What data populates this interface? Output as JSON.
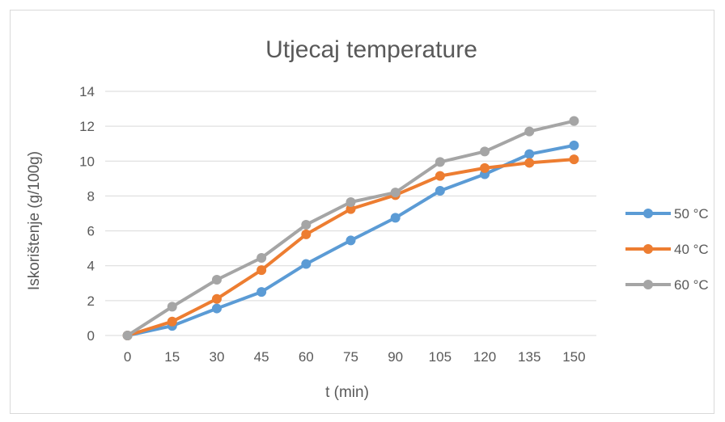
{
  "chart_data": {
    "type": "line",
    "title": "Utjecaj temperature",
    "xlabel": "t (min)",
    "ylabel": "Iskorištenje (g/100g)",
    "categories": [
      "0",
      "15",
      "30",
      "45",
      "60",
      "75",
      "90",
      "105",
      "120",
      "135",
      "150"
    ],
    "ylim": [
      0,
      14
    ],
    "yticks": [
      "0",
      "2",
      "4",
      "6",
      "8",
      "10",
      "12",
      "14"
    ],
    "grid": true,
    "legend": "right",
    "series": [
      {
        "name": "50 °C",
        "color": "#5B9BD5",
        "values": [
          0,
          0.55,
          1.55,
          2.5,
          4.1,
          5.45,
          6.75,
          8.3,
          9.25,
          10.4,
          10.9
        ]
      },
      {
        "name": "40 °C",
        "color": "#ED7D31",
        "values": [
          0,
          0.8,
          2.1,
          3.75,
          5.8,
          7.25,
          8.05,
          9.15,
          9.6,
          9.9,
          10.1
        ]
      },
      {
        "name": "60 °C",
        "color": "#A5A5A5",
        "values": [
          0,
          1.65,
          3.2,
          4.45,
          6.35,
          7.65,
          8.2,
          9.95,
          10.55,
          11.7,
          12.3
        ]
      }
    ]
  }
}
